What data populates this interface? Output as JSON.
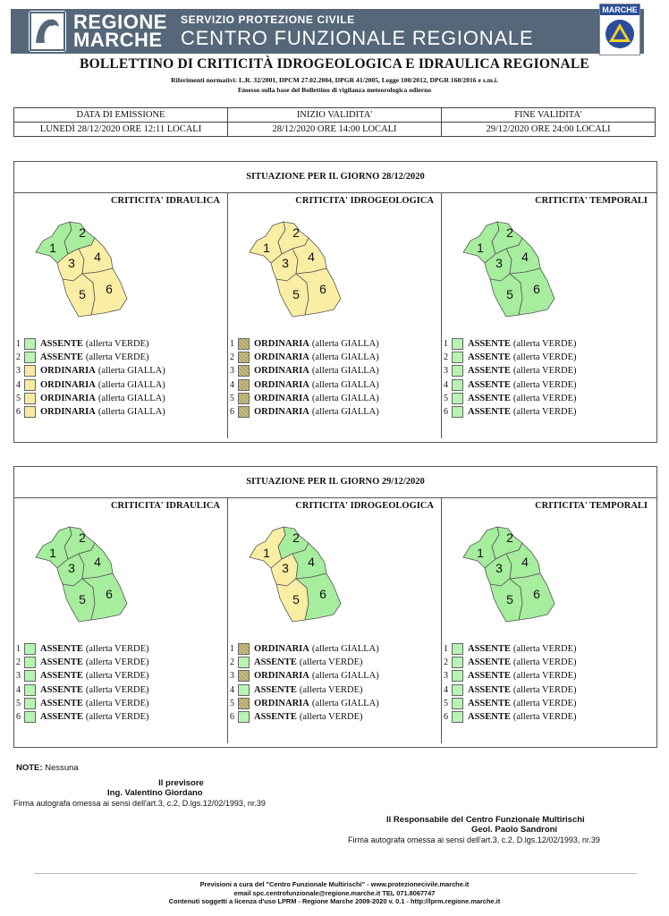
{
  "header": {
    "region_line1": "REGIONE",
    "region_line2": "MARCHE",
    "service": "SERVIZIO PROTEZIONE CIVILE",
    "center": "CENTRO FUNZIONALE REGIONALE",
    "badge_text": "MARCHE"
  },
  "doc": {
    "title": "BOLLETTINO DI CRITICITÀ IDROGEOLOGICA E IDRAULICA REGIONALE",
    "references": "Riferimenti normativi: L.R. 32/2001, DPCM 27.02.2004, DPGR 41/2005, Legge 100/2012, DPGR 160/2016 e s.m.i.",
    "issued_basis": "Emesso sulla base del Bollettino di vigilanza meteorologica odierno"
  },
  "emission": {
    "headers": [
      "DATA DI EMISSIONE",
      "INIZIO VALIDITA'",
      "FINE VALIDITA'"
    ],
    "values": [
      "LUNEDÌ 28/12/2020 ORE 12:11 LOCALI",
      "28/12/2020 ORE 14:00 LOCALI",
      "29/12/2020 ORE 24:00 LOCALI"
    ]
  },
  "colors": {
    "green": "#b7f3b3",
    "yellow": "#f7eba2",
    "yellow_hatched": "#c9bd7d",
    "map_green": "#a6ed9e",
    "map_yellow": "#faeea4",
    "banner": "#556779"
  },
  "panels": [
    {
      "title": "SITUAZIONE PER IL GIORNO 28/12/2020",
      "columns": [
        {
          "header": "CRITICITA' IDRAULICA",
          "zones": [
            {
              "num": "1",
              "level": "ASSENTE",
              "alert": "(allerta VERDE)",
              "color": "green"
            },
            {
              "num": "2",
              "level": "ASSENTE",
              "alert": "(allerta VERDE)",
              "color": "green"
            },
            {
              "num": "3",
              "level": "ORDINARIA",
              "alert": "(allerta GIALLA)",
              "color": "yellow"
            },
            {
              "num": "4",
              "level": "ORDINARIA",
              "alert": "(allerta GIALLA)",
              "color": "yellow"
            },
            {
              "num": "5",
              "level": "ORDINARIA",
              "alert": "(allerta GIALLA)",
              "color": "yellow"
            },
            {
              "num": "6",
              "level": "ORDINARIA",
              "alert": "(allerta GIALLA)",
              "color": "yellow"
            }
          ]
        },
        {
          "header": "CRITICITA' IDROGEOLOGICA",
          "zones": [
            {
              "num": "1",
              "level": "ORDINARIA",
              "alert": "(allerta GIALLA)",
              "color": "yellow_hatched"
            },
            {
              "num": "2",
              "level": "ORDINARIA",
              "alert": "(allerta GIALLA)",
              "color": "yellow_hatched"
            },
            {
              "num": "3",
              "level": "ORDINARIA",
              "alert": "(allerta GIALLA)",
              "color": "yellow_hatched"
            },
            {
              "num": "4",
              "level": "ORDINARIA",
              "alert": "(allerta GIALLA)",
              "color": "yellow_hatched"
            },
            {
              "num": "5",
              "level": "ORDINARIA",
              "alert": "(allerta GIALLA)",
              "color": "yellow_hatched"
            },
            {
              "num": "6",
              "level": "ORDINARIA",
              "alert": "(allerta GIALLA)",
              "color": "yellow_hatched"
            }
          ]
        },
        {
          "header": "CRITICITA' TEMPORALI",
          "zones": [
            {
              "num": "1",
              "level": "ASSENTE",
              "alert": "(allerta VERDE)",
              "color": "green"
            },
            {
              "num": "2",
              "level": "ASSENTE",
              "alert": "(allerta VERDE)",
              "color": "green"
            },
            {
              "num": "3",
              "level": "ASSENTE",
              "alert": "(allerta VERDE)",
              "color": "green"
            },
            {
              "num": "4",
              "level": "ASSENTE",
              "alert": "(allerta VERDE)",
              "color": "green"
            },
            {
              "num": "5",
              "level": "ASSENTE",
              "alert": "(allerta VERDE)",
              "color": "green"
            },
            {
              "num": "6",
              "level": "ASSENTE",
              "alert": "(allerta VERDE)",
              "color": "green"
            }
          ]
        }
      ]
    },
    {
      "title": "SITUAZIONE PER IL GIORNO 29/12/2020",
      "columns": [
        {
          "header": "CRITICITA' IDRAULICA",
          "zones": [
            {
              "num": "1",
              "level": "ASSENTE",
              "alert": "(allerta VERDE)",
              "color": "green"
            },
            {
              "num": "2",
              "level": "ASSENTE",
              "alert": "(allerta VERDE)",
              "color": "green"
            },
            {
              "num": "3",
              "level": "ASSENTE",
              "alert": "(allerta VERDE)",
              "color": "green"
            },
            {
              "num": "4",
              "level": "ASSENTE",
              "alert": "(allerta VERDE)",
              "color": "green"
            },
            {
              "num": "5",
              "level": "ASSENTE",
              "alert": "(allerta VERDE)",
              "color": "green"
            },
            {
              "num": "6",
              "level": "ASSENTE",
              "alert": "(allerta VERDE)",
              "color": "green"
            }
          ]
        },
        {
          "header": "CRITICITA' IDROGEOLOGICA",
          "zones": [
            {
              "num": "1",
              "level": "ORDINARIA",
              "alert": "(allerta GIALLA)",
              "color": "yellow_hatched"
            },
            {
              "num": "2",
              "level": "ASSENTE",
              "alert": "(allerta VERDE)",
              "color": "green"
            },
            {
              "num": "3",
              "level": "ORDINARIA",
              "alert": "(allerta GIALLA)",
              "color": "yellow_hatched"
            },
            {
              "num": "4",
              "level": "ASSENTE",
              "alert": "(allerta VERDE)",
              "color": "green"
            },
            {
              "num": "5",
              "level": "ORDINARIA",
              "alert": "(allerta GIALLA)",
              "color": "yellow_hatched"
            },
            {
              "num": "6",
              "level": "ASSENTE",
              "alert": "(allerta VERDE)",
              "color": "green"
            }
          ]
        },
        {
          "header": "CRITICITA' TEMPORALI",
          "zones": [
            {
              "num": "1",
              "level": "ASSENTE",
              "alert": "(allerta VERDE)",
              "color": "green"
            },
            {
              "num": "2",
              "level": "ASSENTE",
              "alert": "(allerta VERDE)",
              "color": "green"
            },
            {
              "num": "3",
              "level": "ASSENTE",
              "alert": "(allerta VERDE)",
              "color": "green"
            },
            {
              "num": "4",
              "level": "ASSENTE",
              "alert": "(allerta VERDE)",
              "color": "green"
            },
            {
              "num": "5",
              "level": "ASSENTE",
              "alert": "(allerta VERDE)",
              "color": "green"
            },
            {
              "num": "6",
              "level": "ASSENTE",
              "alert": "(allerta VERDE)",
              "color": "green"
            }
          ]
        }
      ]
    }
  ],
  "footer": {
    "note_label": "NOTE:",
    "note_text": "Nessuna",
    "forecaster_title": "Il previsore",
    "forecaster_name": "Ing. Valentino Giordano",
    "forecaster_sig": "Firma autografa omessa ai sensi dell'art.3, c.2, D.lgs.12/02/1993, nr.39",
    "responsible_title": "Il Responsabile del Centro Funzionale Multirischi",
    "responsible_name": "Geol. Paolo Sandroni",
    "responsible_sig": "Firma autografa omessa ai sensi dell'art.3, c.2, D.lgs.12/02/1993, nr.39",
    "line1": "Previsioni a cura del \"Centro Funzionale Multirischi\" - www.protezionecivile.marche.it",
    "line2": "email spc.centrofunzionale@regione.marche.it  TEL 071.8067747",
    "line3": "Contenuti soggetti a licenza d'uso LPRM - Regione Marche 2009-2020 v. 0.1 - http://lprm.regione.marche.it"
  }
}
